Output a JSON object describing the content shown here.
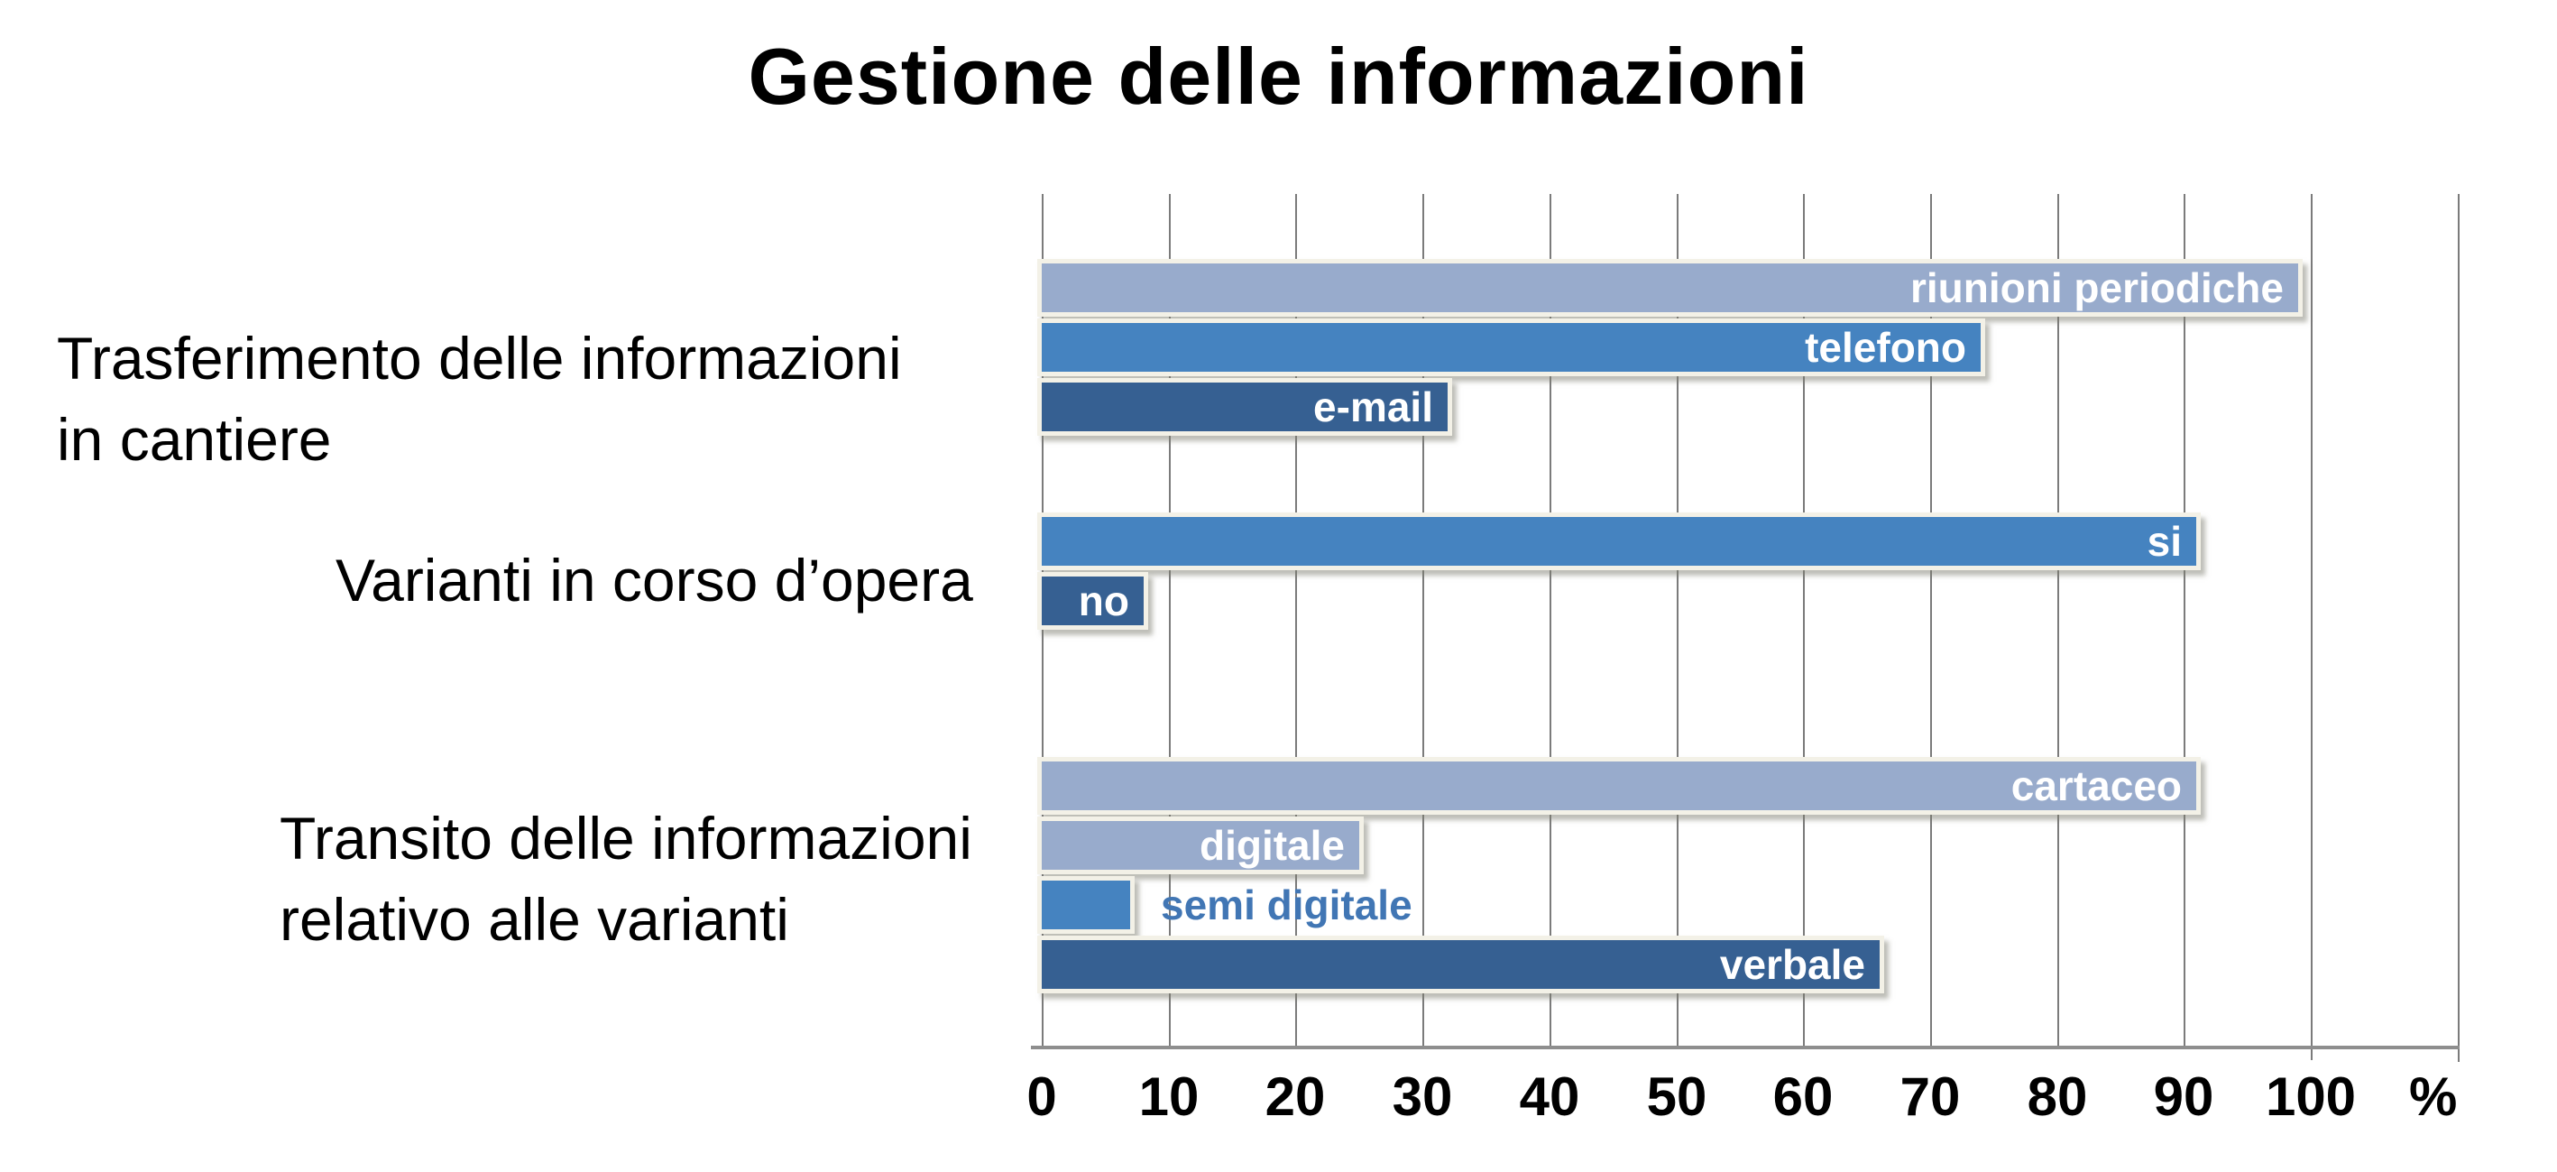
{
  "chart_data": {
    "type": "bar",
    "orientation": "horizontal",
    "title": "Gestione delle informazioni",
    "xlabel": "%",
    "xlim": [
      0,
      100
    ],
    "x_ticks": [
      0,
      10,
      20,
      30,
      40,
      50,
      60,
      70,
      80,
      90,
      100
    ],
    "grid": "vertical gridlines every 10",
    "legend": "none (value labels printed on bars)",
    "colors": {
      "light": "#98ABCC",
      "medium": "#4583C0",
      "dark": "#366092",
      "outside_label_text": "#4176B4",
      "bar_border": "#F3F1E7",
      "gridline": "#7B7B7B",
      "axis_line": "#8E8E8E",
      "title_text": "#000000"
    },
    "groups": [
      {
        "category_lines": [
          "Trasferimento delle informazioni",
          "in cantiere"
        ],
        "bars": [
          {
            "label": "riunioni periodiche",
            "value": 99,
            "shade": "light",
            "label_position": "inside"
          },
          {
            "label": "telefono",
            "value": 74,
            "shade": "medium",
            "label_position": "inside"
          },
          {
            "label": "e-mail",
            "value": 32,
            "shade": "dark",
            "label_position": "inside"
          }
        ]
      },
      {
        "category_lines": [
          "Varianti in corso d’opera"
        ],
        "bars": [
          {
            "label": "si",
            "value": 91,
            "shade": "medium",
            "label_position": "inside"
          },
          {
            "label": "no",
            "value": 8,
            "shade": "dark",
            "label_position": "inside"
          }
        ]
      },
      {
        "category_lines": [
          "Transito delle informazioni",
          "relativo alle varianti"
        ],
        "bars": [
          {
            "label": "cartaceo",
            "value": 91,
            "shade": "light",
            "label_position": "inside"
          },
          {
            "label": "digitale",
            "value": 25,
            "shade": "light",
            "label_position": "inside"
          },
          {
            "label": "semi digitale",
            "value": 7,
            "shade": "medium",
            "label_position": "outside"
          },
          {
            "label": "verbale",
            "value": 66,
            "shade": "dark",
            "label_position": "inside"
          }
        ]
      }
    ]
  }
}
